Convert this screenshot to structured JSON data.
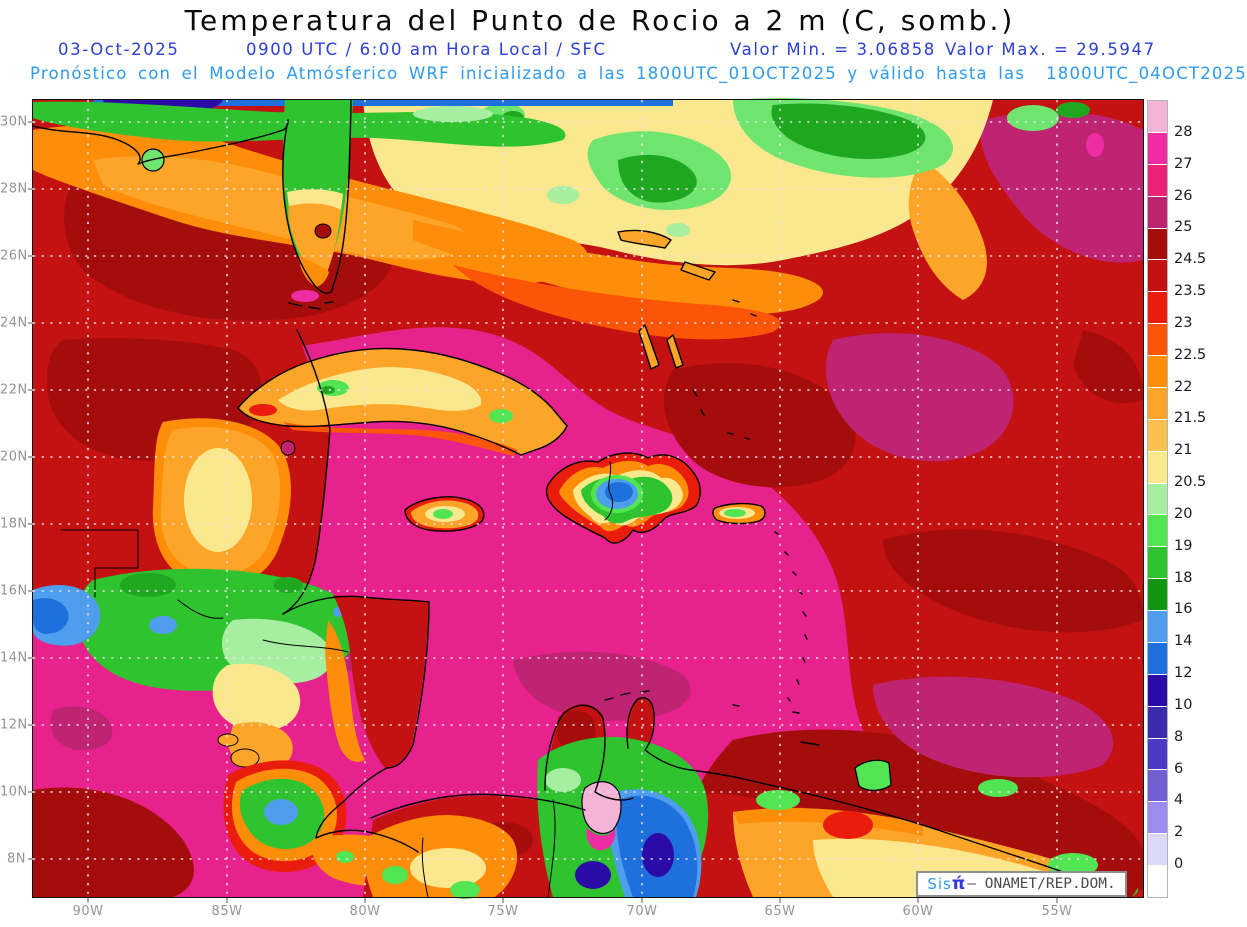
{
  "header": {
    "title": "Temperatura del Punto de Rocio a 2 m (C, somb.)",
    "date": "03-Oct-2025",
    "time": "0900 UTC / 6:00 am Hora Local / SFC",
    "min_label": "Valor Min. = 3.06858",
    "max_label": "Valor Max. = 29.5947",
    "model_line": "Pronóstico con el Modelo Atmósferico WRF inicializado a las 1800UTC_01OCT2025 y válido hasta las  1800UTC_04OCT2025"
  },
  "map": {
    "lat_ticks": [
      "30N",
      "28N",
      "26N",
      "24N",
      "22N",
      "20N",
      "18N",
      "16N",
      "14N",
      "12N",
      "10N",
      "8N"
    ],
    "lon_ticks": [
      "90W",
      "85W",
      "80W",
      "75W",
      "70W",
      "65W",
      "60W",
      "55W"
    ]
  },
  "colorbar": {
    "labels": [
      "28",
      "27",
      "26",
      "25",
      "24.5",
      "23.5",
      "23",
      "22.5",
      "22",
      "21.5",
      "21",
      "20.5",
      "20",
      "19",
      "18",
      "16",
      "14",
      "12",
      "10",
      "8",
      "6",
      "4",
      "2",
      "0"
    ],
    "colors": [
      "#F5B3D7",
      "#EE2DA2",
      "#ED2277",
      "#BC2470",
      "#A50D0D",
      "#C41111",
      "#E91C0E",
      "#FD5508",
      "#FE8D0A",
      "#FDA529",
      "#FCC050",
      "#FBE88E",
      "#A6EEA0",
      "#52E452",
      "#2FC42F",
      "#129612",
      "#4F9DED",
      "#1E70DC",
      "#2B0BA8",
      "#3A2AAE",
      "#4B3AC2",
      "#7260D2",
      "#9D8CF0",
      "#DCD8F8",
      "#FFFFFF"
    ]
  },
  "watermark": {
    "sis": "Sis",
    "pi": "π́",
    "org": "– ONAMET/REP.DOM."
  }
}
